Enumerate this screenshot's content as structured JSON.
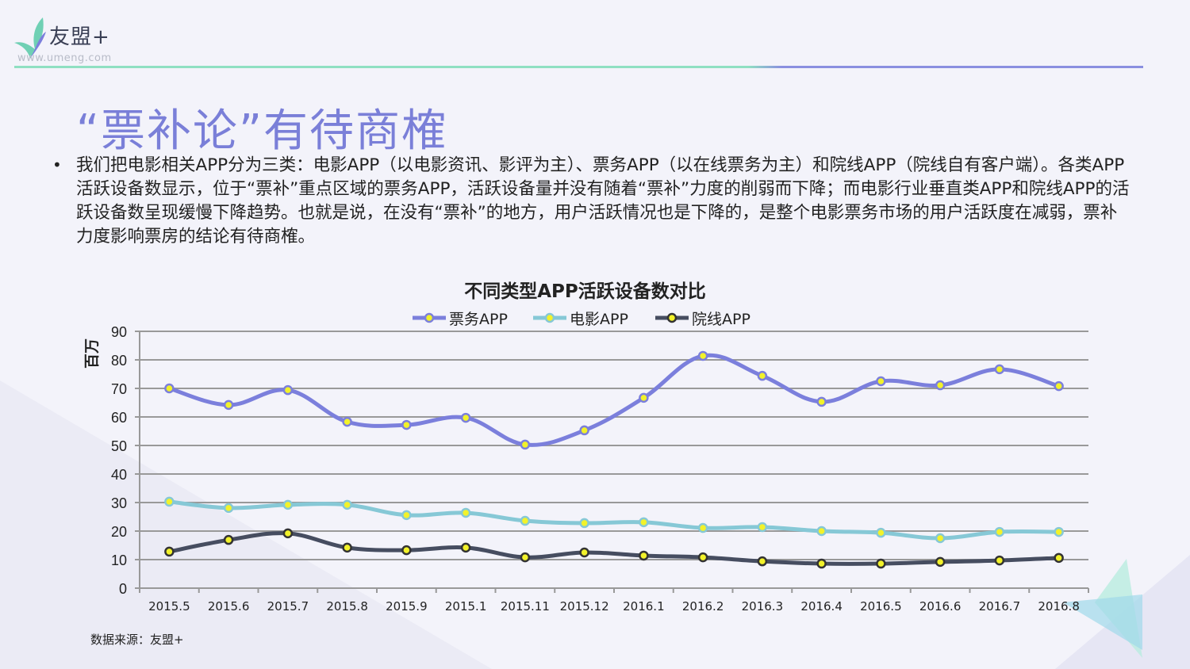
{
  "logo": {
    "name": "友盟+",
    "url": "www.umeng.com"
  },
  "title": "“票补论”有待商榷",
  "paragraph": "我们把电影相关APP分为三类：电影APP（以电影资讯、影评为主）、票务APP（以在线票务为主）和院线APP（院线自有客户端）。各类APP活跃设备数显示，位于“票补”重点区域的票务APP，活跃设备量并没有随着“票补”力度的削弱而下降；而电影行业垂直类APP和院线APP的活跃设备数呈现缓慢下降趋势。也就是说，在没有“票补”的地方，用户活跃情况也是下降的，是整个电影票务市场的用户活跃度在减弱，票补力度影响票房的结论有待商榷。",
  "bullet": "•",
  "source": "数据来源：友盟+",
  "chart_data": {
    "type": "line",
    "title": "不同类型APP活跃设备数对比",
    "xlabel": "",
    "ylabel": "百万",
    "ylim": [
      0,
      90
    ],
    "yticks": [
      0,
      10,
      20,
      30,
      40,
      50,
      60,
      70,
      80,
      90
    ],
    "grid": true,
    "legend_position": "top-center",
    "categories": [
      "2015.5",
      "2015.6",
      "2015.7",
      "2015.8",
      "2015.9",
      "2015.1",
      "2015.11",
      "2015.12",
      "2016.1",
      "2016.2",
      "2016.3",
      "2016.4",
      "2016.5",
      "2016.6",
      "2016.7",
      "2016.8"
    ],
    "series": [
      {
        "name": "票务APP",
        "color": "#7b7fdc",
        "values": [
          70.0,
          64.2,
          69.4,
          58.3,
          57.2,
          59.7,
          50.3,
          55.3,
          66.7,
          81.4,
          74.4,
          65.3,
          72.5,
          71.1,
          76.7,
          70.8
        ]
      },
      {
        "name": "电影APP",
        "color": "#86c8d6",
        "values": [
          30.3,
          28.1,
          29.2,
          29.2,
          25.6,
          26.4,
          23.6,
          22.8,
          23.1,
          21.1,
          21.4,
          20.0,
          19.4,
          17.5,
          19.7,
          19.7
        ]
      },
      {
        "name": "院线APP",
        "color": "#464d60",
        "values": [
          12.8,
          16.9,
          19.2,
          14.2,
          13.3,
          14.2,
          10.8,
          12.5,
          11.4,
          10.8,
          9.4,
          8.6,
          8.6,
          9.2,
          9.7,
          10.6
        ]
      }
    ],
    "marker_color": "#f2f22a"
  }
}
